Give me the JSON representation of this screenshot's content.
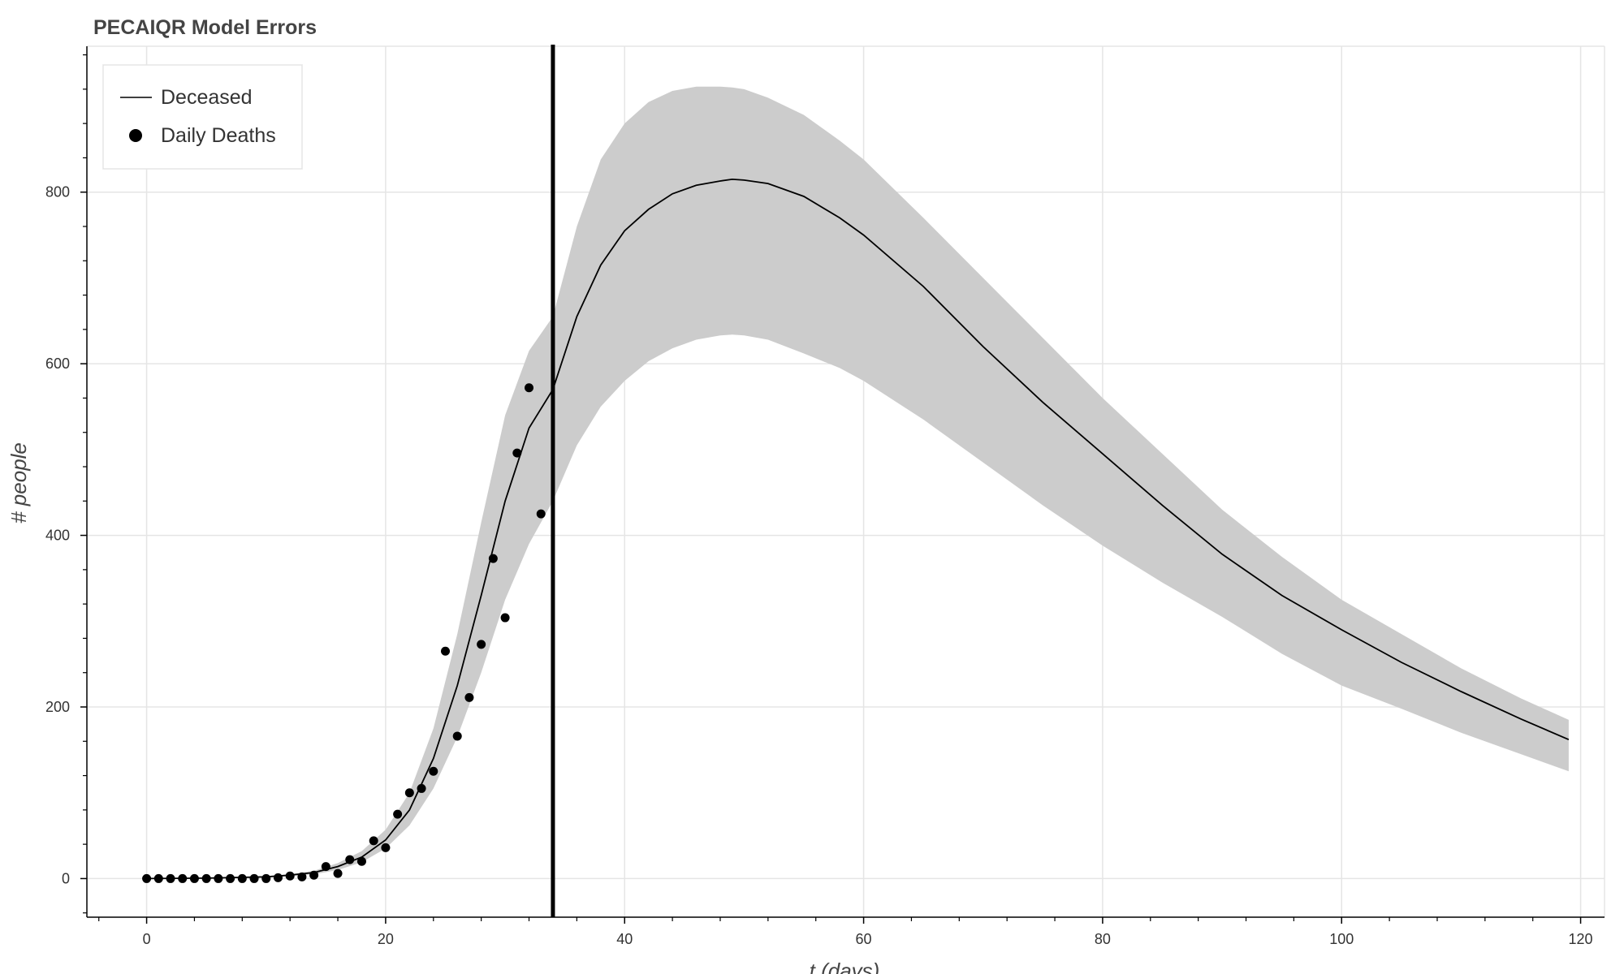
{
  "chart_data": {
    "type": "line",
    "title": "PECAIQR Model Errors",
    "xlabel": "t (days)",
    "ylabel": "# people",
    "xlim": [
      -5,
      122
    ],
    "ylim": [
      -45,
      970
    ],
    "x_ticks": [
      0,
      20,
      40,
      60,
      80,
      100,
      120
    ],
    "y_ticks": [
      0,
      200,
      400,
      600,
      800
    ],
    "grid": true,
    "legend_position": "top-left",
    "vertical_line": {
      "x": 34
    },
    "colors": {
      "line": "#000000",
      "band": "#cccccc",
      "points": "#000000",
      "grid": "#e5e5e5"
    },
    "series": [
      {
        "name": "Deceased",
        "type": "line",
        "band": true,
        "x": [
          0,
          5,
          10,
          12,
          14,
          16,
          18,
          20,
          22,
          24,
          26,
          28,
          30,
          32,
          34,
          36,
          38,
          40,
          42,
          44,
          46,
          48,
          49,
          50,
          52,
          55,
          58,
          60,
          65,
          70,
          75,
          80,
          85,
          90,
          95,
          100,
          105,
          110,
          115,
          119
        ],
        "y": [
          0,
          0.5,
          2,
          4,
          7,
          14,
          25,
          45,
          80,
          140,
          225,
          330,
          440,
          525,
          570,
          655,
          715,
          755,
          780,
          798,
          808,
          813,
          815,
          814,
          810,
          795,
          770,
          750,
          690,
          620,
          555,
          495,
          435,
          378,
          330,
          290,
          252,
          218,
          186,
          162
        ],
        "lower": [
          0,
          0.3,
          1.5,
          3,
          5,
          10,
          19,
          35,
          62,
          105,
          165,
          240,
          325,
          390,
          440,
          505,
          550,
          580,
          603,
          618,
          628,
          633,
          634,
          633,
          628,
          612,
          595,
          580,
          535,
          485,
          435,
          388,
          345,
          305,
          262,
          225,
          198,
          170,
          145,
          125
        ],
        "upper": [
          0,
          0.8,
          2.5,
          5,
          9,
          18,
          32,
          57,
          100,
          175,
          285,
          415,
          540,
          615,
          655,
          760,
          838,
          880,
          905,
          918,
          923,
          923,
          922,
          920,
          910,
          890,
          860,
          838,
          770,
          700,
          630,
          560,
          495,
          430,
          375,
          325,
          285,
          245,
          210,
          185
        ]
      },
      {
        "name": "Daily Deaths",
        "type": "scatter",
        "x": [
          0,
          1,
          2,
          3,
          4,
          5,
          6,
          7,
          8,
          9,
          10,
          11,
          12,
          13,
          14,
          15,
          16,
          17,
          18,
          19,
          20,
          21,
          22,
          23,
          24,
          25,
          26,
          27,
          28,
          29,
          30,
          31,
          32,
          33
        ],
        "y": [
          0,
          0,
          0,
          0,
          0,
          0,
          0,
          0,
          0,
          0,
          0,
          1,
          3,
          2,
          4,
          14,
          6,
          22,
          20,
          44,
          36,
          75,
          100,
          105,
          125,
          265,
          166,
          211,
          273,
          373,
          304,
          496,
          572,
          425
        ]
      }
    ]
  }
}
